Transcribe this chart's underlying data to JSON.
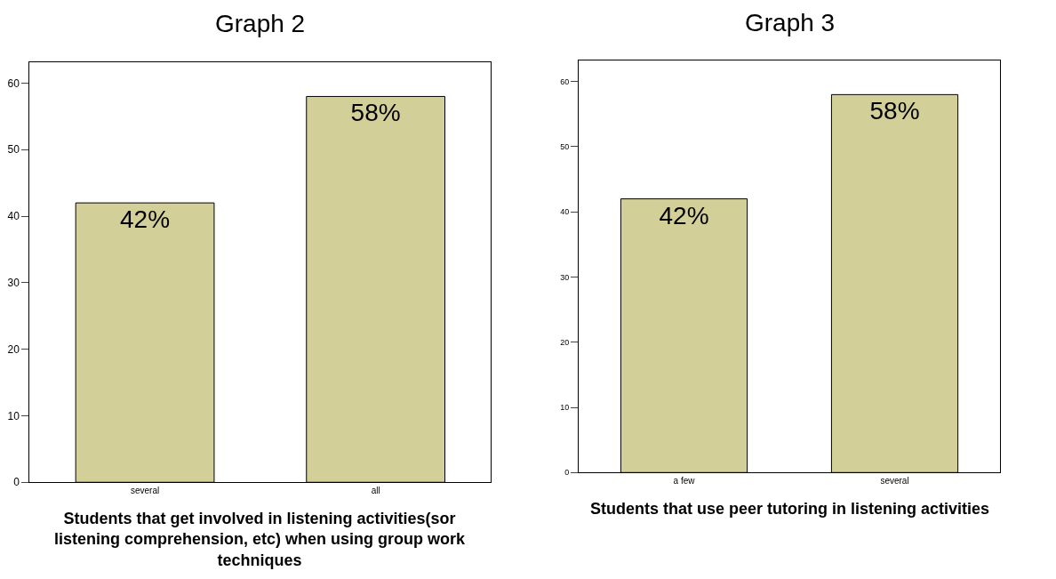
{
  "chart_data": [
    {
      "type": "bar",
      "title": "Graph 2",
      "xlabel": "Students that get involved in listening activities(sor\nlistening comprehension, etc) when using group work\ntechniques",
      "categories": [
        "several",
        "all"
      ],
      "values": [
        42,
        58
      ],
      "value_labels": [
        "42%",
        "58%"
      ],
      "color": "#d3cf99",
      "ylim": [
        0,
        63.2
      ],
      "yticks": [
        0,
        10,
        20,
        30,
        40,
        50,
        60
      ]
    },
    {
      "type": "bar",
      "title": "Graph 3",
      "xlabel": "Students that use peer tutoring in listening activities",
      "categories": [
        "a few",
        "several"
      ],
      "values": [
        42,
        58
      ],
      "value_labels": [
        "42%",
        "58%"
      ],
      "color": "#d3cf99",
      "ylim": [
        0,
        63.2
      ],
      "yticks": [
        0,
        10,
        20,
        30,
        40,
        50,
        60
      ]
    }
  ]
}
